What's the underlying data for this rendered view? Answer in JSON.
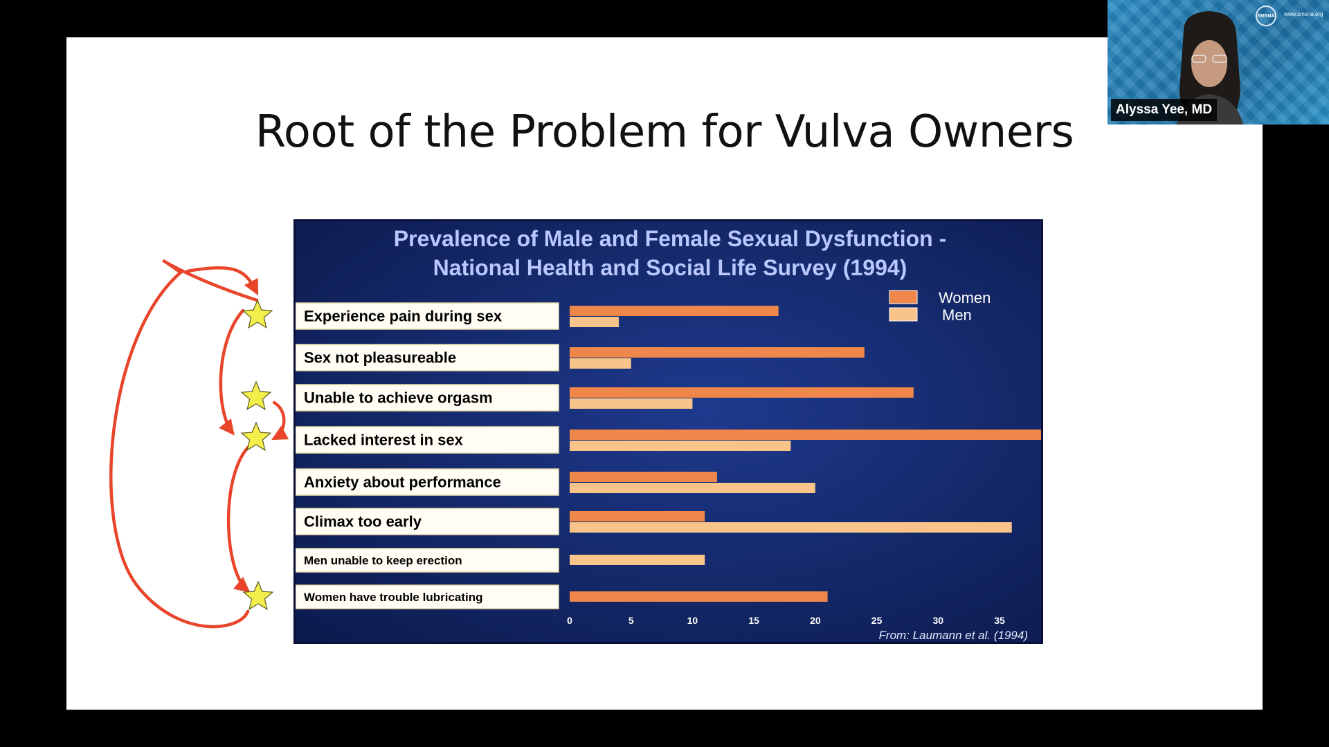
{
  "slide": {
    "title": "Root of the Problem for Vulva Owners"
  },
  "video": {
    "speaker_name": "Alyssa Yee, MD",
    "logo_text": "SMSNA",
    "url_text": "www.smsna.org"
  },
  "chart_data": {
    "type": "bar",
    "orientation": "horizontal",
    "title": "Prevalence of Male and Female Sexual Dysfunction -\nNational Health and Social Life Survey (1994)",
    "title_lines": [
      "Prevalence of Male and Female Sexual Dysfunction -",
      "National Health and Social Life Survey (1994)"
    ],
    "source": "From: Laumann et al. (1994)",
    "categories": [
      "Experience pain during sex",
      "Sex not pleasureable",
      "Unable to achieve orgasm",
      "Lacked interest in sex",
      "Anxiety about performance",
      "Climax too early",
      "Men unable to keep erection",
      "Women have trouble lubricating"
    ],
    "series": [
      {
        "name": "Women",
        "color": "#f0874a",
        "values": [
          17,
          24,
          28,
          39,
          12,
          11,
          null,
          21
        ]
      },
      {
        "name": "Men",
        "color": "#f8c48a",
        "values": [
          4,
          5,
          10,
          18,
          20,
          36,
          11,
          null
        ]
      }
    ],
    "x_ticks": [
      "0",
      "5",
      "10",
      "15",
      "20",
      "25",
      "30",
      "35"
    ],
    "xlim": [
      0,
      39
    ],
    "legend_position": "top-right",
    "grid": false,
    "highlighted_categories": [
      "Experience pain during sex",
      "Unable to achieve orgasm",
      "Lacked interest in sex",
      "Women have trouble lubricating"
    ],
    "annotation_color": "#e8452b",
    "star_color": "#f4ee4c"
  }
}
